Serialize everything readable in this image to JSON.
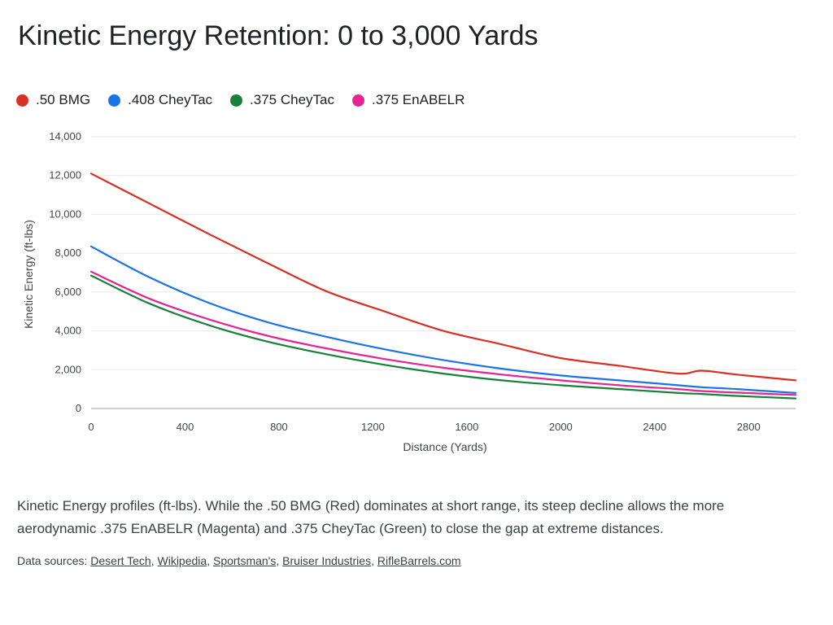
{
  "chart_data": {
    "type": "line",
    "title": "Kinetic Energy Retention: 0 to 3,000 Yards",
    "xlabel": "Distance (Yards)",
    "ylabel": "Kinetic Energy (ft-lbs)",
    "xlim": [
      0,
      3000
    ],
    "ylim": [
      0,
      14000
    ],
    "x_ticks": [
      0,
      400,
      800,
      1200,
      1600,
      2000,
      2400,
      2800
    ],
    "x_tick_labels": [
      "0",
      "400",
      "800",
      "1200",
      "1600",
      "2000",
      "2400",
      "2800"
    ],
    "y_ticks": [
      0,
      2000,
      4000,
      6000,
      8000,
      10000,
      12000,
      14000
    ],
    "y_tick_labels": [
      "0",
      "2,000",
      "4,000",
      "6,000",
      "8,000",
      "10,000",
      "12,000",
      "14,000"
    ],
    "grid": true,
    "legend_position": "top-left",
    "x": [
      0,
      250,
      500,
      750,
      1000,
      1250,
      1500,
      1750,
      2000,
      2250,
      2500,
      2600,
      2750,
      3000
    ],
    "series": [
      {
        "name": ".50 BMG",
        "color": "#d93025",
        "values": [
          12100,
          10550,
          9000,
          7500,
          6050,
          5000,
          4000,
          3300,
          2600,
          2200,
          1800,
          1950,
          1750,
          1450
        ]
      },
      {
        "name": ".408 CheyTac",
        "color": "#1a73e8",
        "values": [
          8350,
          6750,
          5450,
          4450,
          3700,
          3050,
          2500,
          2050,
          1700,
          1450,
          1200,
          1100,
          1000,
          800
        ]
      },
      {
        "name": ".375 CheyTac",
        "color": "#188038",
        "values": [
          6850,
          5400,
          4300,
          3450,
          2800,
          2250,
          1800,
          1450,
          1200,
          1000,
          800,
          750,
          650,
          520
        ]
      },
      {
        "name": ".375 EnABELR",
        "color": "#e52592",
        "values": [
          7050,
          5650,
          4600,
          3750,
          3100,
          2550,
          2100,
          1750,
          1450,
          1200,
          1000,
          900,
          820,
          700
        ]
      }
    ]
  },
  "caption": "Kinetic Energy profiles (ft-lbs). While the .50 BMG (Red) dominates at short range, its steep decline allows the more aerodynamic .375 EnABELR (Magenta) and .375 CheyTac (Green) to close the gap at extreme distances.",
  "sources": {
    "prefix": "Data sources:",
    "links": [
      "Desert Tech",
      "Wikipedia",
      "Sportsman's",
      "Bruiser Industries",
      "RifleBarrels.com"
    ]
  }
}
